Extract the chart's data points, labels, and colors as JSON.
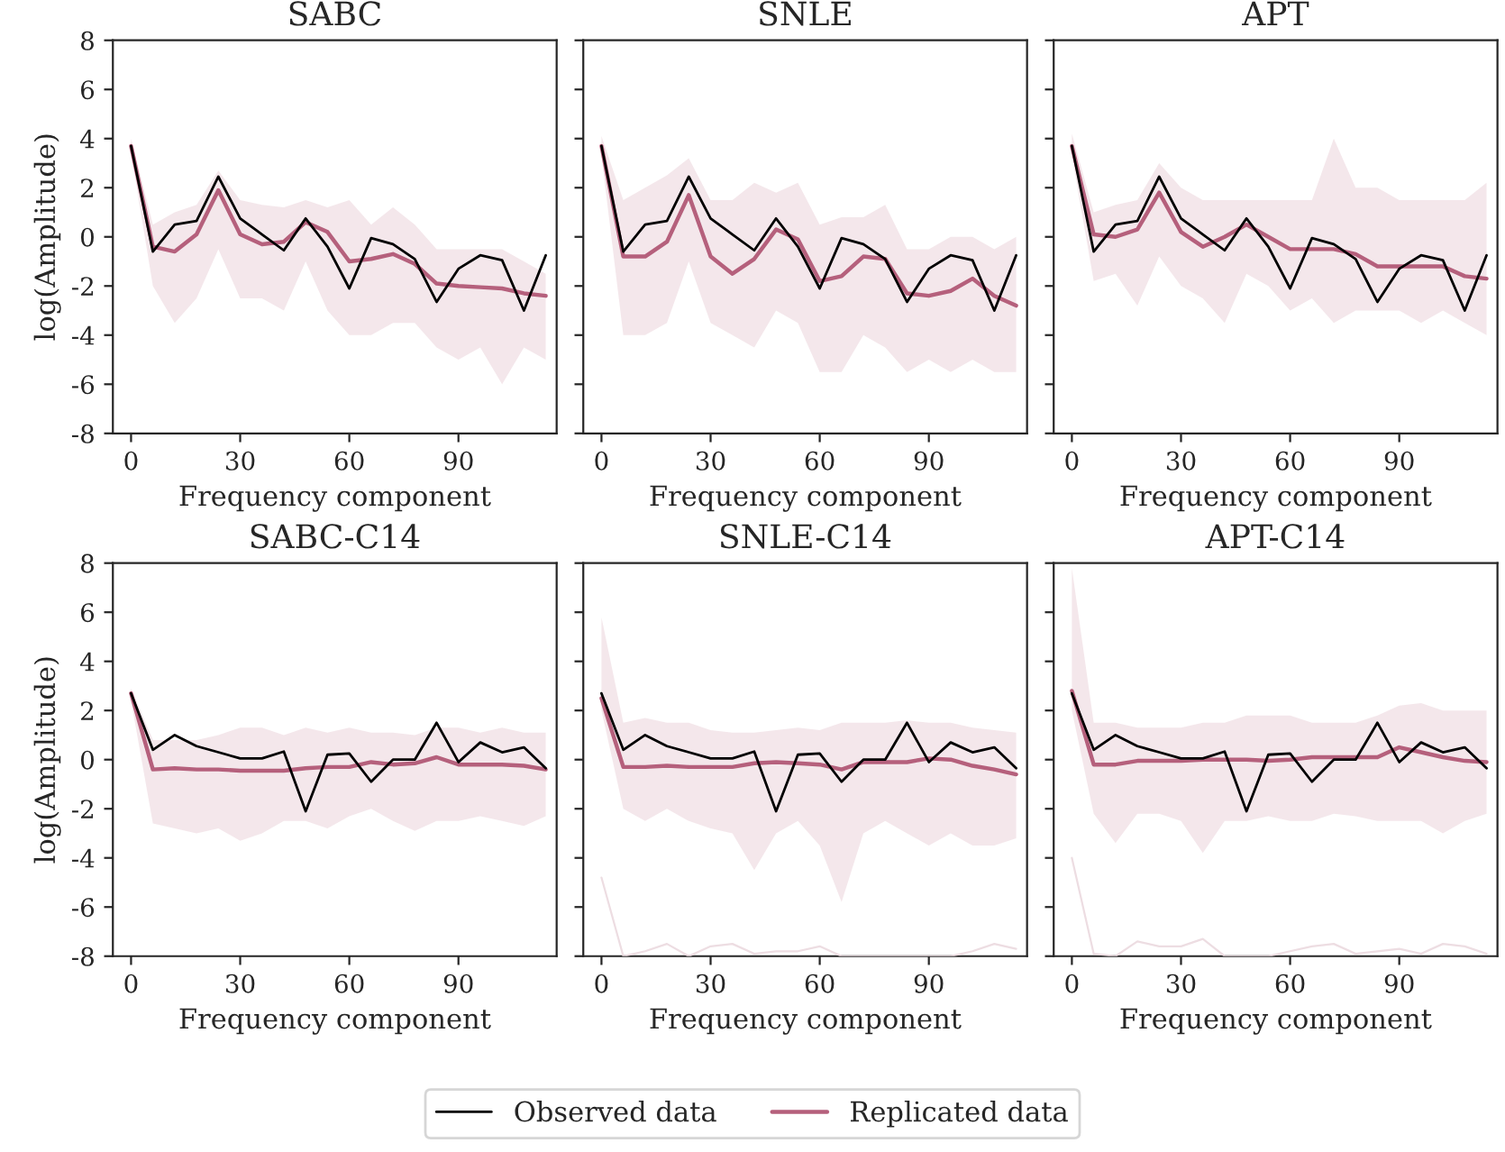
{
  "chart_data": [
    {
      "type": "line",
      "title": "SABC",
      "xlabel": "Frequency component",
      "ylabel": "log(Amplitude)",
      "x": [
        0,
        6,
        12,
        18,
        24,
        30,
        36,
        42,
        48,
        54,
        60,
        66,
        72,
        78,
        84,
        90,
        96,
        102,
        108,
        114
      ],
      "xlim": [
        -5,
        117
      ],
      "ylim": [
        -8,
        8
      ],
      "xticks": [
        0,
        30,
        60,
        90
      ],
      "yticks": [
        -8,
        -6,
        -4,
        -2,
        0,
        2,
        4,
        6,
        8
      ],
      "grid": false,
      "legend": "bottom",
      "marker": "none",
      "line_style": "solid",
      "series": [
        {
          "name": "Observed data",
          "color": "#000000",
          "values": [
            3.7,
            -0.6,
            0.5,
            0.65,
            2.45,
            0.75,
            0.1,
            -0.55,
            0.75,
            -0.4,
            -2.1,
            -0.05,
            -0.3,
            -0.9,
            -2.65,
            -1.3,
            -0.75,
            -0.95,
            -3.0,
            -0.75
          ]
        },
        {
          "name": "Replicated data",
          "color": "#b5607c",
          "values": [
            3.7,
            -0.4,
            -0.6,
            0.1,
            1.9,
            0.1,
            -0.3,
            -0.2,
            0.6,
            0.2,
            -1.0,
            -0.9,
            -0.7,
            -1.1,
            -1.9,
            -2.0,
            -2.05,
            -2.1,
            -2.3,
            -2.4
          ],
          "lower": [
            3.4,
            -2,
            -3.5,
            -2.5,
            -0.5,
            -2.5,
            -2.5,
            -3,
            -1,
            -3,
            -4,
            -4,
            -3.5,
            -3.5,
            -4.5,
            -5,
            -4.5,
            -6,
            -4.5,
            -5
          ],
          "upper": [
            4,
            0.5,
            1,
            1.3,
            2.7,
            1.5,
            1.3,
            1.2,
            1.5,
            1.2,
            1.5,
            0.5,
            1.2,
            0.5,
            -0.5,
            -0.5,
            -0.5,
            -0.5,
            -1,
            -1.5
          ]
        }
      ]
    },
    {
      "type": "line",
      "title": "SNLE",
      "xlabel": "Frequency component",
      "x": [
        0,
        6,
        12,
        18,
        24,
        30,
        36,
        42,
        48,
        54,
        60,
        66,
        72,
        78,
        84,
        90,
        96,
        102,
        108,
        114
      ],
      "xlim": [
        -5,
        117
      ],
      "ylim": [
        -8,
        8
      ],
      "xticks": [
        0,
        30,
        60,
        90
      ],
      "yticks": [
        -8,
        -6,
        -4,
        -2,
        0,
        2,
        4,
        6,
        8
      ],
      "tick_labels": "x",
      "grid": false,
      "legend": "bottom",
      "marker": "none",
      "line_style": "solid",
      "series": [
        {
          "name": "Observed data",
          "color": "#000000",
          "values": [
            3.7,
            -0.6,
            0.5,
            0.65,
            2.45,
            0.75,
            0.1,
            -0.55,
            0.75,
            -0.4,
            -2.1,
            -0.05,
            -0.3,
            -0.9,
            -2.65,
            -1.3,
            -0.75,
            -0.95,
            -3.0,
            -0.75
          ]
        },
        {
          "name": "Replicated data",
          "color": "#b5607c",
          "values": [
            3.7,
            -0.8,
            -0.8,
            -0.2,
            1.7,
            -0.8,
            -1.5,
            -0.9,
            0.3,
            -0.1,
            -1.8,
            -1.6,
            -0.8,
            -0.9,
            -2.3,
            -2.4,
            -2.2,
            -1.7,
            -2.4,
            -2.8
          ],
          "lower": [
            3.3,
            -4,
            -4,
            -3.5,
            -1,
            -3.5,
            -4,
            -4.5,
            -3,
            -3.5,
            -5.5,
            -5.5,
            -4,
            -4.5,
            -5.5,
            -5,
            -5.5,
            -5,
            -5.5,
            -5.5
          ],
          "upper": [
            4.1,
            1.5,
            2,
            2.5,
            3.2,
            1.5,
            1.5,
            2.2,
            1.8,
            2.2,
            0.5,
            0.8,
            0.8,
            1.3,
            -0.5,
            -0.5,
            0,
            0,
            -0.5,
            0
          ]
        }
      ]
    },
    {
      "type": "line",
      "title": "APT",
      "xlabel": "Frequency component",
      "x": [
        0,
        6,
        12,
        18,
        24,
        30,
        36,
        42,
        48,
        54,
        60,
        66,
        72,
        78,
        84,
        90,
        96,
        102,
        108,
        114
      ],
      "xlim": [
        -5,
        117
      ],
      "ylim": [
        -8,
        8
      ],
      "xticks": [
        0,
        30,
        60,
        90
      ],
      "yticks": [
        -8,
        -6,
        -4,
        -2,
        0,
        2,
        4,
        6,
        8
      ],
      "tick_labels": "x",
      "grid": false,
      "legend": "bottom",
      "marker": "none",
      "line_style": "solid",
      "series": [
        {
          "name": "Observed data",
          "color": "#000000",
          "values": [
            3.7,
            -0.6,
            0.5,
            0.65,
            2.45,
            0.75,
            0.1,
            -0.55,
            0.75,
            -0.4,
            -2.1,
            -0.05,
            -0.3,
            -0.9,
            -2.65,
            -1.3,
            -0.75,
            -0.95,
            -3.0,
            -0.75
          ]
        },
        {
          "name": "Replicated data",
          "color": "#b5607c",
          "values": [
            3.7,
            0.1,
            0,
            0.3,
            1.8,
            0.2,
            -0.4,
            0,
            0.5,
            0,
            -0.5,
            -0.5,
            -0.5,
            -0.7,
            -1.2,
            -1.2,
            -1.2,
            -1.2,
            -1.6,
            -1.7
          ],
          "lower": [
            3.3,
            -1.8,
            -1.5,
            -2.8,
            -0.8,
            -2,
            -2.5,
            -3.5,
            -1.5,
            -2,
            -3,
            -2.5,
            -3.5,
            -3,
            -3,
            -3,
            -3.5,
            -3,
            -3.5,
            -4
          ],
          "upper": [
            4.2,
            1,
            1.3,
            1.5,
            3,
            2,
            1.5,
            1.5,
            1.5,
            1.5,
            1.5,
            1.5,
            4,
            2,
            2,
            1.5,
            1.5,
            1.5,
            1.5,
            2.2
          ]
        }
      ]
    },
    {
      "type": "line",
      "title": "SABC-C14",
      "xlabel": "Frequency component",
      "ylabel": "log(Amplitude)",
      "x": [
        0,
        6,
        12,
        18,
        24,
        30,
        36,
        42,
        48,
        54,
        60,
        66,
        72,
        78,
        84,
        90,
        96,
        102,
        108,
        114
      ],
      "xlim": [
        -5,
        117
      ],
      "ylim": [
        -8,
        8
      ],
      "xticks": [
        0,
        30,
        60,
        90
      ],
      "yticks": [
        -8,
        -6,
        -4,
        -2,
        0,
        2,
        4,
        6,
        8
      ],
      "grid": false,
      "legend": "bottom",
      "marker": "none",
      "line_style": "solid",
      "series": [
        {
          "name": "Observed data",
          "color": "#000000",
          "values": [
            2.7,
            0.4,
            1.0,
            0.55,
            0.3,
            0.05,
            0.05,
            0.33,
            -2.1,
            0.2,
            0.25,
            -0.9,
            0,
            0,
            1.5,
            -0.1,
            0.7,
            0.3,
            0.5,
            -0.35
          ]
        },
        {
          "name": "Replicated data",
          "color": "#b5607c",
          "values": [
            2.7,
            -0.4,
            -0.35,
            -0.4,
            -0.4,
            -0.45,
            -0.45,
            -0.45,
            -0.35,
            -0.3,
            -0.3,
            -0.1,
            -0.2,
            -0.15,
            0.1,
            -0.2,
            -0.2,
            -0.2,
            -0.25,
            -0.4
          ],
          "lower": [
            2.4,
            -2.6,
            -2.8,
            -3,
            -2.8,
            -3.3,
            -3,
            -2.5,
            -2.5,
            -2.8,
            -2.3,
            -2,
            -2.5,
            -2.9,
            -2.5,
            -2.5,
            -2.3,
            -2.5,
            -2.7,
            -2.3
          ],
          "upper": [
            2.9,
            0.8,
            0.8,
            0.8,
            1,
            1.3,
            1.3,
            1,
            1.3,
            1.1,
            1.3,
            1.1,
            1.1,
            1,
            1.3,
            1.3,
            1.1,
            1.3,
            1.1,
            1.1
          ]
        }
      ]
    },
    {
      "type": "line",
      "title": "SNLE-C14",
      "xlabel": "Frequency component",
      "x": [
        0,
        6,
        12,
        18,
        24,
        30,
        36,
        42,
        48,
        54,
        60,
        66,
        72,
        78,
        84,
        90,
        96,
        102,
        108,
        114
      ],
      "xlim": [
        -5,
        117
      ],
      "ylim": [
        -8,
        8
      ],
      "xticks": [
        0,
        30,
        60,
        90
      ],
      "yticks": [
        -8,
        -6,
        -4,
        -2,
        0,
        2,
        4,
        6,
        8
      ],
      "tick_labels": "x",
      "grid": false,
      "legend": "bottom",
      "marker": "none",
      "line_style": "solid",
      "series": [
        {
          "name": "Observed data",
          "color": "#000000",
          "values": [
            2.7,
            0.4,
            1.0,
            0.55,
            0.3,
            0.05,
            0.05,
            0.33,
            -2.1,
            0.2,
            0.25,
            -0.9,
            0,
            0,
            1.5,
            -0.1,
            0.7,
            0.3,
            0.5,
            -0.35
          ]
        },
        {
          "name": "Replicated data",
          "color": "#b5607c",
          "values": [
            2.5,
            -0.3,
            -0.3,
            -0.25,
            -0.3,
            -0.3,
            -0.3,
            -0.15,
            -0.1,
            -0.15,
            -0.2,
            -0.4,
            -0.1,
            -0.1,
            -0.1,
            0.05,
            0,
            -0.25,
            -0.4,
            -0.6
          ],
          "lower": [
            2,
            -2,
            -2.5,
            -2,
            -2.5,
            -2.8,
            -3,
            -4.5,
            -3,
            -2.5,
            -3.5,
            -5.8,
            -3,
            -2.5,
            -3,
            -3.5,
            -3,
            -3.5,
            -3.5,
            -3.2
          ],
          "upper": [
            5.8,
            1.5,
            1.7,
            1.5,
            1.5,
            1.2,
            1.1,
            1.1,
            1.2,
            1.3,
            1.2,
            1.5,
            1.5,
            1.5,
            1.6,
            1.5,
            1.5,
            1.3,
            1.2,
            1.1
          ]
        },
        {
          "color": "#eddde2",
          "values": [
            -4.8,
            -8,
            -7.8,
            -7.5,
            -8,
            -7.6,
            -7.5,
            -7.9,
            -7.8,
            -7.8,
            -7.6,
            -8,
            -8,
            -8,
            -8,
            -8,
            -8,
            -7.8,
            -7.5,
            -7.7
          ]
        }
      ]
    },
    {
      "type": "line",
      "title": "APT-C14",
      "xlabel": "Frequency component",
      "x": [
        0,
        6,
        12,
        18,
        24,
        30,
        36,
        42,
        48,
        54,
        60,
        66,
        72,
        78,
        84,
        90,
        96,
        102,
        108,
        114
      ],
      "xlim": [
        -5,
        117
      ],
      "ylim": [
        -8,
        8
      ],
      "xticks": [
        0,
        30,
        60,
        90
      ],
      "yticks": [
        -8,
        -6,
        -4,
        -2,
        0,
        2,
        4,
        6,
        8
      ],
      "tick_labels": "x",
      "grid": false,
      "legend": "bottom",
      "marker": "none",
      "line_style": "solid",
      "series": [
        {
          "name": "Observed data",
          "color": "#000000",
          "values": [
            2.7,
            0.4,
            1.0,
            0.55,
            0.3,
            0.05,
            0.05,
            0.33,
            -2.1,
            0.2,
            0.25,
            -0.9,
            0,
            0,
            1.5,
            -0.1,
            0.7,
            0.3,
            0.5,
            -0.35
          ]
        },
        {
          "name": "Replicated data",
          "color": "#b5607c",
          "values": [
            2.8,
            -0.2,
            -0.2,
            -0.05,
            -0.05,
            -0.05,
            0,
            0,
            0,
            -0.05,
            0,
            0.1,
            0.1,
            0.1,
            0.1,
            0.5,
            0.3,
            0.1,
            -0.05,
            -0.1
          ],
          "lower": [
            2,
            -2.2,
            -3.4,
            -2.2,
            -2.2,
            -2.5,
            -3.8,
            -2.5,
            -2.5,
            -2.3,
            -2.5,
            -2.5,
            -2.2,
            -2.3,
            -2.5,
            -2.5,
            -2.5,
            -3,
            -2.5,
            -2.2
          ],
          "upper": [
            7.8,
            1.5,
            1.5,
            1.3,
            1.3,
            1.3,
            1.5,
            1.5,
            1.8,
            1.8,
            1.8,
            1.5,
            1.5,
            1.5,
            1.8,
            2.2,
            2.3,
            2,
            2,
            2
          ]
        },
        {
          "color": "#eddde2",
          "values": [
            -4,
            -7.9,
            -8,
            -7.4,
            -7.6,
            -7.6,
            -7.3,
            -8,
            -8,
            -8,
            -7.8,
            -7.6,
            -7.5,
            -7.9,
            -7.8,
            -7.7,
            -7.9,
            -7.5,
            -7.6,
            -7.9
          ]
        }
      ]
    }
  ]
}
